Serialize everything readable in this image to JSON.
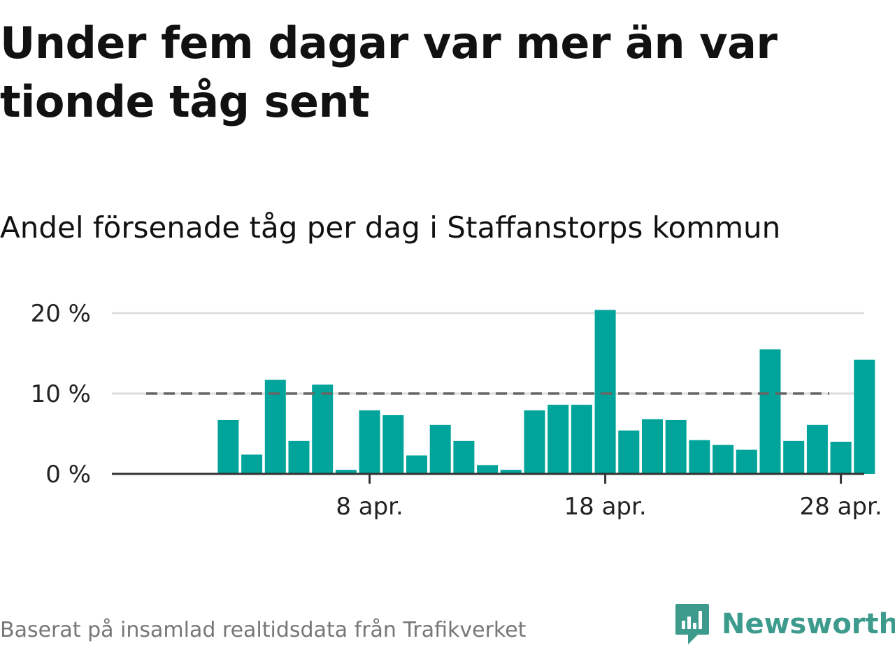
{
  "title": "Under fem dagar var mer än var tionde tåg sent",
  "subtitle": "Andel försenade tåg per dag i Staffanstorps kommun",
  "source": "Baserat på insamlad realtidsdata från Trafikverket",
  "brand": {
    "name": "Newsworthy",
    "icon": "newsworthy-logo-icon",
    "color": "#3d9b8d"
  },
  "colors": {
    "bar": "#00a49a",
    "grid": "#dddddd",
    "axis": "#333333",
    "threshold": "#666666",
    "text": "#111111"
  },
  "chart_data": {
    "type": "bar",
    "title": "Andel försenade tåg per dag i Staffanstorps kommun",
    "x_type": "date",
    "x": [
      "2024-03-31",
      "2024-04-01",
      "2024-04-02",
      "2024-04-03",
      "2024-04-04",
      "2024-04-05",
      "2024-04-06",
      "2024-04-07",
      "2024-04-08",
      "2024-04-09",
      "2024-04-10",
      "2024-04-11",
      "2024-04-12",
      "2024-04-13",
      "2024-04-14",
      "2024-04-15",
      "2024-04-16",
      "2024-04-17",
      "2024-04-18",
      "2024-04-19",
      "2024-04-20",
      "2024-04-21",
      "2024-04-22",
      "2024-04-23",
      "2024-04-24",
      "2024-04-25",
      "2024-04-26",
      "2024-04-27",
      "2024-04-28",
      "2024-04-29",
      "2024-04-30"
    ],
    "values": [
      null,
      null,
      6.7,
      2.4,
      11.7,
      4.1,
      11.1,
      0.5,
      7.9,
      7.3,
      2.3,
      6.1,
      4.1,
      1.1,
      0.5,
      7.9,
      8.6,
      8.6,
      20.4,
      5.4,
      6.8,
      6.7,
      4.2,
      3.6,
      3.0,
      15.5,
      4.1,
      6.1,
      4.0,
      14.2,
      null
    ],
    "unit": "%",
    "yticks": [
      0,
      10,
      20
    ],
    "ytick_labels": [
      "0 %",
      "10 %",
      "20 %"
    ],
    "ylim": [
      0,
      20
    ],
    "xticks": [
      "2024-04-08",
      "2024-04-18",
      "2024-04-28"
    ],
    "xtick_labels": [
      "8 apr.",
      "18 apr.",
      "28 apr."
    ],
    "threshold": 10,
    "grid": true,
    "legend": false
  }
}
